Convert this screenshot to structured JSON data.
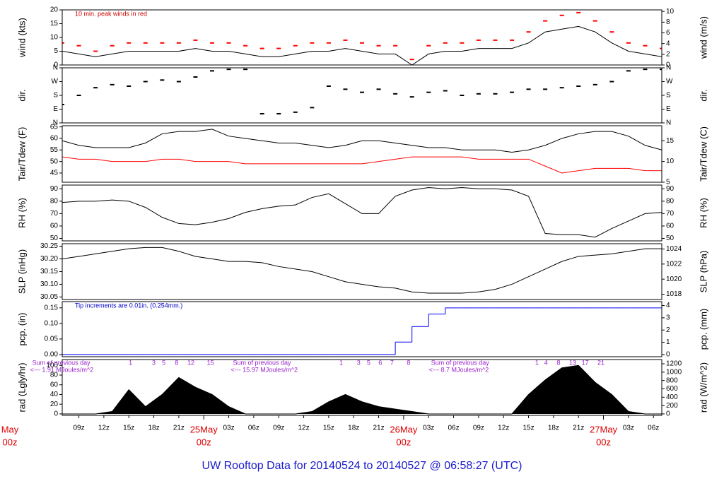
{
  "title": "UW Rooftop Data for 20140524  to  20140527 @ 06:58:27  (UTC)",
  "time_axis": {
    "x": [
      7,
      9,
      11,
      13,
      15,
      17,
      19,
      21,
      23,
      25,
      27,
      29,
      31,
      33,
      35,
      37,
      39,
      41,
      43,
      45,
      47,
      49,
      51,
      53,
      55,
      57,
      59,
      61,
      63,
      65,
      67,
      69,
      71,
      73,
      75,
      77,
      79
    ],
    "xlim": [
      7,
      79
    ],
    "xticks": [
      {
        "value": 9,
        "label": "09z"
      },
      {
        "value": 12,
        "label": "12z"
      },
      {
        "value": 15,
        "label": "15z"
      },
      {
        "value": 18,
        "label": "18z"
      },
      {
        "value": 21,
        "label": "21z"
      },
      {
        "value": 27,
        "label": "03z"
      },
      {
        "value": 30,
        "label": "06z"
      },
      {
        "value": 33,
        "label": "09z"
      },
      {
        "value": 36,
        "label": "12z"
      },
      {
        "value": 39,
        "label": "15z"
      },
      {
        "value": 42,
        "label": "18z"
      },
      {
        "value": 45,
        "label": "21z"
      },
      {
        "value": 51,
        "label": "03z"
      },
      {
        "value": 54,
        "label": "06z"
      },
      {
        "value": 57,
        "label": "09z"
      },
      {
        "value": 60,
        "label": "12z"
      },
      {
        "value": 63,
        "label": "15z"
      },
      {
        "value": 66,
        "label": "18z"
      },
      {
        "value": 69,
        "label": "21z"
      },
      {
        "value": 75,
        "label": "03z"
      },
      {
        "value": 78,
        "label": "06z"
      }
    ],
    "date_ticks": [
      {
        "value": 0,
        "date": "May",
        "hour": "00z"
      },
      {
        "value": 24,
        "date": "25May",
        "hour": "00z"
      },
      {
        "value": 48,
        "date": "26May",
        "hour": "00z"
      },
      {
        "value": 72,
        "date": "27May",
        "hour": "00z"
      }
    ]
  },
  "chart_data": [
    {
      "type": "line",
      "ylabel": "wind (kts)",
      "y2label": "wind (m/s)",
      "annotation": "10 min. peak winds in red",
      "annotation_color": "#cc0000",
      "ylim": [
        0,
        20
      ],
      "yticks": [
        0,
        5,
        10,
        15,
        20
      ],
      "y2lim": [
        0,
        10.29
      ],
      "y2ticks": [
        0,
        2,
        4,
        6,
        8,
        10
      ],
      "series": [
        {
          "style": "line",
          "color": "#000000",
          "values": [
            5,
            4,
            3,
            4,
            5,
            5,
            5,
            5,
            6,
            5,
            5,
            4,
            3,
            3,
            4,
            5,
            5,
            6,
            5,
            4,
            4,
            0,
            4,
            5,
            5,
            6,
            6,
            6,
            8,
            12,
            13,
            14,
            12,
            8,
            5,
            4,
            3
          ]
        },
        {
          "style": "dash",
          "color": "#ff0000",
          "values": [
            8,
            7,
            5,
            7,
            8,
            8,
            8,
            8,
            9,
            8,
            8,
            7,
            6,
            6,
            7,
            8,
            8,
            9,
            8,
            7,
            7,
            2,
            7,
            8,
            8,
            9,
            9,
            9,
            12,
            16,
            18,
            19,
            16,
            12,
            8,
            7,
            6
          ]
        }
      ]
    },
    {
      "type": "scatter",
      "ylabel": "dir.",
      "y2label": "dir.",
      "ylim": [
        0,
        360
      ],
      "yticks": [
        {
          "value": 0,
          "label": "N"
        },
        {
          "value": 90,
          "label": "E"
        },
        {
          "value": 180,
          "label": "S"
        },
        {
          "value": 270,
          "label": "W"
        },
        {
          "value": 360,
          "label": "N"
        }
      ],
      "y2lim": [
        0,
        360
      ],
      "y2ticks": [
        {
          "value": 0,
          "label": "N"
        },
        {
          "value": 90,
          "label": "E"
        },
        {
          "value": 180,
          "label": "S"
        },
        {
          "value": 270,
          "label": "W"
        },
        {
          "value": 360,
          "label": "N"
        }
      ],
      "series": [
        {
          "style": "dash",
          "color": "#000000",
          "values": [
            120,
            180,
            230,
            250,
            240,
            270,
            280,
            270,
            300,
            340,
            350,
            350,
            60,
            60,
            70,
            100,
            240,
            220,
            200,
            220,
            190,
            170,
            200,
            210,
            180,
            190,
            190,
            200,
            220,
            220,
            230,
            240,
            250,
            270,
            340,
            350,
            350
          ]
        }
      ]
    },
    {
      "type": "line",
      "ylabel": "Tair/Tdew (F)",
      "y2label": "Tair/Tdew (C)",
      "ylim": [
        41,
        65.5
      ],
      "yticks": [
        45,
        50,
        55,
        60,
        65
      ],
      "y2lim": [
        5,
        18.6
      ],
      "y2ticks": [
        5,
        10,
        15
      ],
      "series": [
        {
          "style": "line",
          "color": "#000000",
          "values": [
            59,
            57,
            56,
            56,
            56,
            58,
            62,
            63,
            63,
            64,
            61,
            60,
            59,
            58,
            58,
            57,
            56,
            57,
            59,
            59,
            58,
            57,
            56,
            56,
            55,
            55,
            55,
            54,
            55,
            57,
            60,
            62,
            63,
            63,
            61,
            57,
            55
          ]
        },
        {
          "style": "line",
          "color": "#ff0000",
          "values": [
            52,
            51,
            51,
            50,
            50,
            50,
            51,
            51,
            50,
            50,
            50,
            49,
            49,
            49,
            49,
            49,
            49,
            49,
            49,
            50,
            51,
            52,
            52,
            52,
            52,
            51,
            51,
            51,
            51,
            48,
            45,
            46,
            47,
            47,
            47,
            46,
            46
          ]
        }
      ]
    },
    {
      "type": "line",
      "ylabel": "RH (%)",
      "y2label": "RH (%)",
      "ylim": [
        48,
        93
      ],
      "yticks": [
        50,
        60,
        70,
        80,
        90
      ],
      "y2lim": [
        48,
        93
      ],
      "y2ticks": [
        50,
        60,
        70,
        80,
        90
      ],
      "series": [
        {
          "style": "line",
          "color": "#000000",
          "values": [
            79,
            80,
            80,
            81,
            80,
            75,
            67,
            62,
            61,
            63,
            66,
            71,
            74,
            76,
            77,
            83,
            86,
            78,
            70,
            70,
            84,
            89,
            91,
            90,
            91,
            90,
            90,
            89,
            84,
            54,
            53,
            53,
            51,
            58,
            64,
            70,
            71
          ]
        }
      ]
    },
    {
      "type": "line",
      "ylabel": "SLP (inHg)",
      "y2label": "SLP (hPa)",
      "ylim": [
        30.04,
        30.26
      ],
      "yticks": [
        {
          "value": 30.05,
          "label": "30.05"
        },
        {
          "value": 30.1,
          "label": "30.10"
        },
        {
          "value": 30.15,
          "label": "30.15"
        },
        {
          "value": 30.2,
          "label": "30.20"
        },
        {
          "value": 30.25,
          "label": "30.25"
        }
      ],
      "y2lim": [
        1017.3,
        1024.7
      ],
      "y2ticks": [
        1018,
        1020,
        1022,
        1024
      ],
      "series": [
        {
          "style": "line",
          "color": "#000000",
          "values": [
            30.2,
            30.21,
            30.22,
            30.23,
            30.24,
            30.245,
            30.245,
            30.23,
            30.21,
            30.2,
            30.19,
            30.19,
            30.185,
            30.17,
            30.16,
            30.15,
            30.13,
            30.11,
            30.1,
            30.09,
            30.085,
            30.07,
            30.065,
            30.065,
            30.065,
            30.07,
            30.08,
            30.1,
            30.13,
            30.16,
            30.19,
            30.21,
            30.215,
            30.22,
            30.23,
            30.24,
            30.24
          ]
        }
      ]
    },
    {
      "type": "step",
      "ylabel": "pcp. (in)",
      "y2label": "pcp. (mm)",
      "annotation": "Tip increments are 0.01in. (0.254mm.)",
      "annotation_color": "#0000cc",
      "ylim": [
        -0.007,
        0.17
      ],
      "yticks": [
        {
          "value": 0,
          "label": "0.00"
        },
        {
          "value": 0.05,
          "label": "0.05"
        },
        {
          "value": 0.1,
          "label": "0.10"
        },
        {
          "value": 0.15,
          "label": "0.15"
        }
      ],
      "y2lim": [
        -0.18,
        4.32
      ],
      "y2ticks": [
        0,
        1,
        2,
        3,
        4
      ],
      "series": [
        {
          "style": "step",
          "color": "#0000ff",
          "values": [
            0,
            0,
            0,
            0,
            0,
            0,
            0,
            0,
            0,
            0,
            0,
            0,
            0,
            0,
            0,
            0,
            0,
            0,
            0,
            0,
            0.04,
            0.09,
            0.13,
            0.15,
            0.15,
            0.15,
            0.15,
            0.15,
            0.15,
            0.15,
            0.15,
            0.15,
            0.15,
            0.15,
            0.15,
            0.15,
            0.15
          ]
        }
      ]
    },
    {
      "type": "area",
      "ylabel": "rad (Lgly/hr)",
      "y2label": "rad (W/m^2)",
      "ylim": [
        -3,
        112
      ],
      "yticks": [
        0,
        20,
        40,
        60,
        80,
        100
      ],
      "y2lim": [
        -35,
        1302
      ],
      "y2ticks": [
        0,
        200,
        400,
        600,
        800,
        1000,
        1200
      ],
      "series": [
        {
          "style": "area",
          "color": "#000000",
          "values": [
            0,
            0,
            0,
            5,
            50,
            15,
            40,
            75,
            55,
            40,
            15,
            0,
            0,
            0,
            0,
            5,
            25,
            40,
            25,
            15,
            10,
            5,
            0,
            0,
            0,
            0,
            0,
            0,
            40,
            70,
            95,
            100,
            65,
            40,
            5,
            0,
            0
          ]
        }
      ],
      "sums": [
        {
          "x": 3.4,
          "line1": "Sum of previous day",
          "line2": "<--- 1.91 MJoules/m^2"
        },
        {
          "x": 27.5,
          "line1": "Sum of previous day",
          "line2": "<--- 15.97 MJoules/m^2"
        },
        {
          "x": 51.3,
          "line1": "Sum of previous day",
          "line2": "<--- 8.7 MJoules/m^2"
        }
      ],
      "hour_marks": [
        {
          "x": 15.2,
          "label": "1"
        },
        {
          "x": 18.0,
          "label": "3"
        },
        {
          "x": 19.2,
          "label": "5"
        },
        {
          "x": 20.75,
          "label": "8"
        },
        {
          "x": 22.45,
          "label": "12"
        },
        {
          "x": 24.8,
          "label": "15"
        },
        {
          "x": 40.5,
          "label": "1"
        },
        {
          "x": 42.6,
          "label": "3"
        },
        {
          "x": 43.8,
          "label": "5"
        },
        {
          "x": 45.2,
          "label": "6"
        },
        {
          "x": 46.6,
          "label": "7"
        },
        {
          "x": 48.6,
          "label": "8"
        },
        {
          "x": 64.0,
          "label": "1"
        },
        {
          "x": 65.1,
          "label": "4"
        },
        {
          "x": 66.6,
          "label": "8"
        },
        {
          "x": 68.3,
          "label": "13"
        },
        {
          "x": 69.8,
          "label": "17"
        },
        {
          "x": 71.7,
          "label": "21"
        }
      ]
    }
  ]
}
